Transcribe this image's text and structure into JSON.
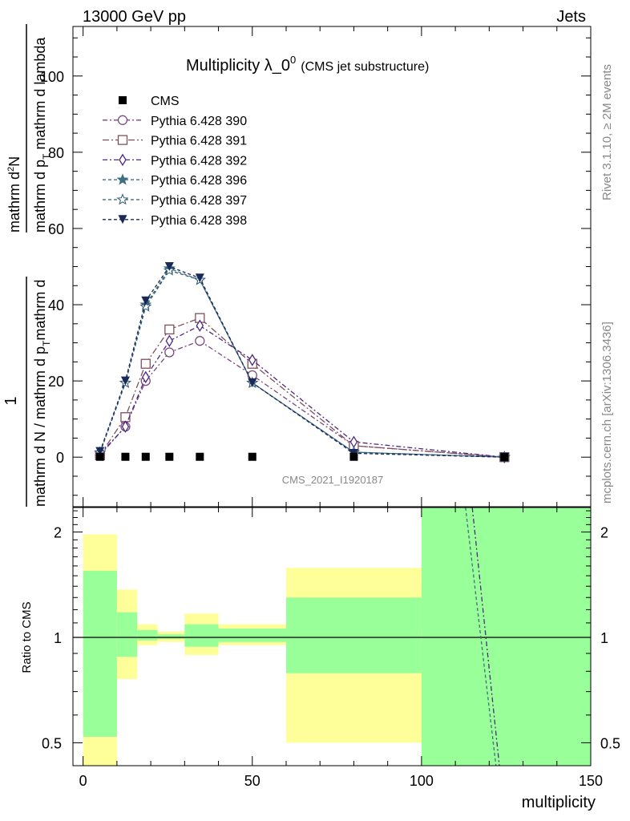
{
  "header": {
    "left": "13000 GeV pp",
    "right": "Jets"
  },
  "side": {
    "rivet": "Rivet 3.1.10, ≥ 2M events",
    "mcplots": "mcplots.cern.ch [arXiv:1306.3436]"
  },
  "watermark": "CMS_2021_I1920187",
  "chart_data": {
    "type": "line",
    "title_main": "Multiplicity λ_0",
    "title_sup": "0",
    "title_sub": "(CMS jet substructure)",
    "xlabel": "multiplicity",
    "ylabel_numerator": "1",
    "ylabel_denominator": "mathrm d N / mathrm d p",
    "ylabel_sub": "T",
    "ylabel_mid": "mathrm d",
    "ylabel_dN": "mathrm d",
    "ylabel_second": "mathrm d p",
    "ylabel_second_sub": "T",
    "ylabel_second_rest": " mathrm d lambda",
    "ylabel_text": "1 / mathrm d N / mathrm d p_T mathrm d^2N / mathrm d p_T mathrm d lambda",
    "ratio_ylabel": "Ratio to CMS",
    "xlim": [
      -3,
      150
    ],
    "ylim": [
      -13,
      113
    ],
    "ratio_ylim": [
      0.43,
      2.35
    ],
    "ratio_log": true,
    "xticks": [
      0,
      50,
      100,
      150
    ],
    "yticks": [
      0,
      20,
      40,
      60,
      80,
      100
    ],
    "ratio_yticks": [
      0.5,
      1,
      2
    ],
    "ratio_ytick_labels": [
      "0.5",
      "1",
      "2"
    ],
    "legend_position": "top-left",
    "cms": {
      "name": "CMS",
      "x": [
        5,
        12.5,
        18.5,
        25.5,
        34.5,
        50,
        80,
        124.5
      ],
      "y": [
        0.1,
        0.1,
        0.1,
        0.1,
        0.1,
        0.1,
        0.1,
        0.0
      ]
    },
    "bands": [
      {
        "xlo": 0,
        "xhi": 10,
        "stat_lo": 0.52,
        "stat_hi": 1.55,
        "tot_lo": 0.43,
        "tot_hi": 1.97
      },
      {
        "xlo": 10,
        "xhi": 16,
        "stat_lo": 0.88,
        "stat_hi": 1.18,
        "tot_lo": 0.76,
        "tot_hi": 1.37
      },
      {
        "xlo": 16,
        "xhi": 22,
        "stat_lo": 0.98,
        "stat_hi": 1.05,
        "tot_lo": 0.95,
        "tot_hi": 1.09
      },
      {
        "xlo": 22,
        "xhi": 30,
        "stat_lo": 0.99,
        "stat_hi": 1.02,
        "tot_lo": 0.97,
        "tot_hi": 1.04
      },
      {
        "xlo": 30,
        "xhi": 40,
        "stat_lo": 0.94,
        "stat_hi": 1.09,
        "tot_lo": 0.89,
        "tot_hi": 1.17
      },
      {
        "xlo": 40,
        "xhi": 60,
        "stat_lo": 0.97,
        "stat_hi": 1.06,
        "tot_lo": 0.95,
        "tot_hi": 1.09
      },
      {
        "xlo": 60,
        "xhi": 100,
        "stat_lo": 0.79,
        "stat_hi": 1.3,
        "tot_lo": 0.5,
        "tot_hi": 1.58
      },
      {
        "xlo": 100,
        "xhi": 150,
        "stat_lo": 0.43,
        "stat_hi": 2.35,
        "tot_lo": 0.43,
        "tot_hi": 2.35
      }
    ],
    "series": [
      {
        "name": "Pythia 6.428 390",
        "color": "#7a4a7e",
        "marker": "circle-open",
        "dash": "6,3,2,3",
        "x": [
          5,
          12.5,
          18.5,
          25.5,
          34.5,
          50,
          80,
          124.5
        ],
        "y": [
          0.5,
          8.0,
          20.0,
          27.5,
          30.5,
          21.5,
          3.0,
          0.0
        ]
      },
      {
        "name": "Pythia 6.428 391",
        "color": "#80505a",
        "marker": "square-open",
        "dash": "8,3,2,3",
        "x": [
          5,
          12.5,
          18.5,
          25.5,
          34.5,
          50,
          80,
          124.5
        ],
        "y": [
          0.5,
          10.5,
          24.5,
          33.5,
          36.5,
          24.5,
          3.0,
          0.0
        ]
      },
      {
        "name": "Pythia 6.428 392",
        "color": "#4c2a80",
        "marker": "diamond-open",
        "dash": "6,3,2,3",
        "x": [
          5,
          12.5,
          18.5,
          25.5,
          34.5,
          50,
          80,
          124.5
        ],
        "y": [
          0.8,
          8.0,
          21.0,
          30.5,
          34.5,
          25.5,
          4.0,
          0.0
        ]
      },
      {
        "name": "Pythia 6.428 396",
        "color": "#3f6f80",
        "marker": "star-filled",
        "dash": "4,3",
        "x": [
          5,
          12.5,
          18.5,
          25.5,
          34.5,
          50,
          80,
          124.5
        ],
        "y": [
          1.2,
          19.5,
          40.0,
          49.5,
          46.5,
          19.5,
          1.3,
          0.0
        ]
      },
      {
        "name": "Pythia 6.428 397",
        "color": "#2f5a78",
        "marker": "star-open",
        "dash": "4,3",
        "x": [
          5,
          12.5,
          18.5,
          25.5,
          34.5,
          50,
          80,
          124.5
        ],
        "y": [
          1.2,
          19.5,
          39.5,
          49.0,
          46.5,
          19.5,
          1.3,
          0.0
        ]
      },
      {
        "name": "Pythia 6.428 398",
        "color": "#1a2a58",
        "marker": "triangle-down-filled",
        "dash": "4,3",
        "x": [
          5,
          12.5,
          18.5,
          25.5,
          34.5,
          50,
          80,
          124.5
        ],
        "y": [
          1.5,
          20.0,
          41.0,
          50.0,
          47.0,
          19.5,
          1.0,
          0.0
        ]
      }
    ],
    "ratio_lines": [
      {
        "color": "#3f6f80",
        "dash": "4,3",
        "x": [
          113,
          122
        ],
        "y": [
          2.35,
          0.43
        ]
      },
      {
        "color": "#4c2a80",
        "dash": "6,3,2,3",
        "x": [
          115,
          123
        ],
        "y": [
          2.35,
          0.43
        ]
      }
    ]
  }
}
